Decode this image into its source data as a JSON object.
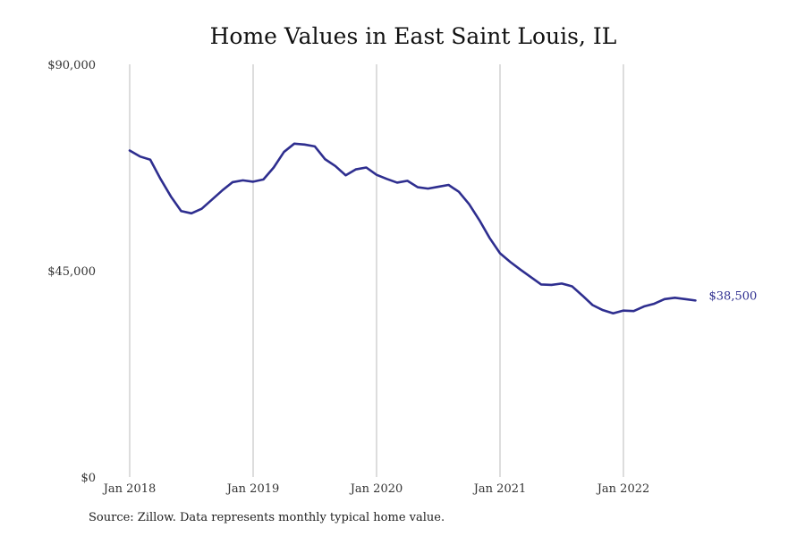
{
  "chart_data": {
    "type": "line",
    "title": "Home Values in East Saint Louis, IL",
    "xlabel": "",
    "ylabel": "",
    "ylim": [
      0,
      90000
    ],
    "y_ticks": [
      0,
      45000,
      90000
    ],
    "y_tick_labels": [
      "$0",
      "$45,000",
      "$90,000"
    ],
    "x_tick_labels": [
      "Jan 2018",
      "Jan 2019",
      "Jan 2020",
      "Jan 2021",
      "Jan 2022"
    ],
    "x_tick_dates": [
      "2018-01",
      "2019-01",
      "2020-01",
      "2021-01",
      "2022-01"
    ],
    "grid": "vertical",
    "series_color": "#2e2e8f",
    "grid_color": "#bbbbbb",
    "end_label": "$38,500",
    "x": [
      "2018-01",
      "2018-02",
      "2018-03",
      "2018-04",
      "2018-05",
      "2018-06",
      "2018-07",
      "2018-08",
      "2018-09",
      "2018-10",
      "2018-11",
      "2018-12",
      "2019-01",
      "2019-02",
      "2019-03",
      "2019-04",
      "2019-05",
      "2019-06",
      "2019-07",
      "2019-08",
      "2019-09",
      "2019-10",
      "2019-11",
      "2019-12",
      "2020-01",
      "2020-02",
      "2020-03",
      "2020-04",
      "2020-05",
      "2020-06",
      "2020-07",
      "2020-08",
      "2020-09",
      "2020-10",
      "2020-11",
      "2020-12",
      "2021-01",
      "2021-02",
      "2021-03",
      "2021-04",
      "2021-05",
      "2021-06",
      "2021-07",
      "2021-08",
      "2021-09",
      "2021-10",
      "2021-11",
      "2021-12",
      "2022-01",
      "2022-02",
      "2022-03",
      "2022-04",
      "2022-05",
      "2022-06",
      "2022-07",
      "2022-08"
    ],
    "values": [
      71200,
      69900,
      69200,
      65000,
      61200,
      58000,
      57500,
      58500,
      60500,
      62500,
      64300,
      64700,
      64400,
      64900,
      67500,
      70900,
      72700,
      72500,
      72100,
      69300,
      67800,
      65800,
      67100,
      67500,
      65900,
      65000,
      64200,
      64600,
      63200,
      62900,
      63300,
      63700,
      62200,
      59500,
      56000,
      52100,
      48800,
      46900,
      45200,
      43600,
      42000,
      41900,
      42200,
      41600,
      39600,
      37500,
      36400,
      35700,
      36300,
      36200,
      37200,
      37800,
      38800,
      39100,
      38800,
      38500
    ]
  },
  "source_note": "Source: Zillow. Data represents monthly typical home value."
}
